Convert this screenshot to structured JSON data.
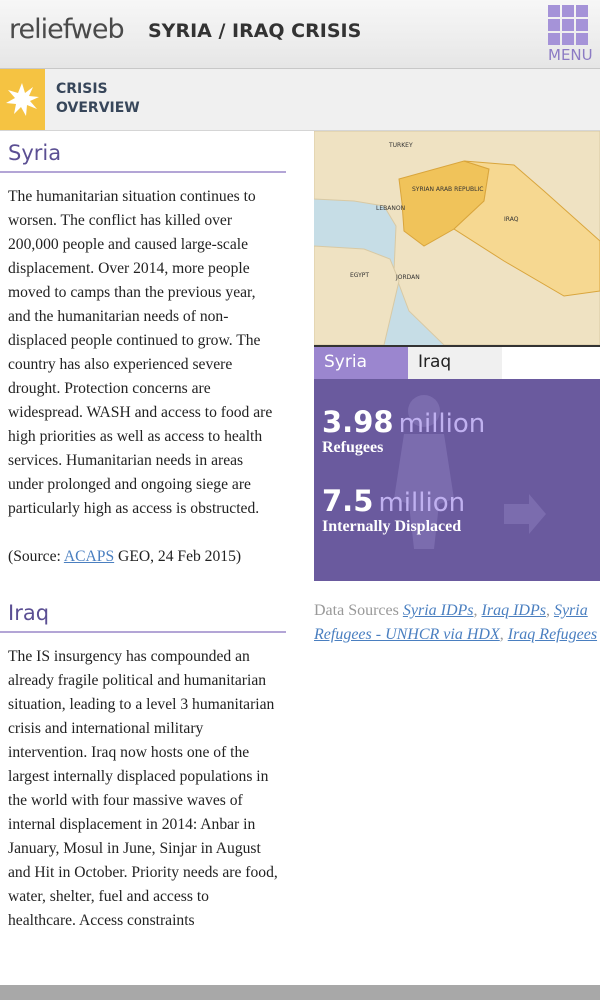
{
  "header": {
    "logo": "reliefweb",
    "title": "SYRIA / IRAQ CRISIS",
    "menu": "MENU"
  },
  "subheader": {
    "line1": "CRISIS",
    "line2": "OVERVIEW"
  },
  "sections": [
    {
      "heading": "Syria",
      "paragraph": "The humanitarian situation continues to worsen. The conflict has killed over 200,000 people and caused large-scale displacement. Over 2014, more people moved to camps than the previous year, and the humanitarian needs of non-displaced people continued to grow. The country has also experienced severe drought. Protection concerns are widespread. WASH and access to food are high priorities as well as access to health services. Humanitarian needs in areas under prolonged and ongoing siege are particularly high as access is obstructed.",
      "source": {
        "prefix": "(Source: ",
        "link": "ACAPS",
        "suffix": " GEO, 24 Feb 2015)"
      }
    },
    {
      "heading": "Iraq",
      "paragraph": "The IS insurgency has compounded an already fragile political and humanitarian situation, leading to a level 3 humanitarian crisis and international military intervention. Iraq now hosts one of the largest internally displaced populations in the world with four massive waves of internal displacement in 2014: Anbar in January, Mosul in June, Sinjar in August and Hit in October. Priority needs are food, water, shelter, fuel and access to healthcare. Access constraints"
    }
  ],
  "map": {
    "labels": [
      "TURKEY",
      "SYRIAN ARAB REPUBLIC",
      "LEBANON",
      "IRAQ",
      "EGYPT",
      "JORDAN"
    ]
  },
  "tabs": [
    "Syria",
    "Iraq"
  ],
  "stats": [
    {
      "value": "3.98",
      "unit": "million",
      "label": "Refugees"
    },
    {
      "value": "7.5",
      "unit": "million",
      "label": "Internally Displaced"
    }
  ],
  "data_sources": {
    "label": "Data Sources",
    "separator": ", ",
    "links": [
      "Syria IDPs",
      "Iraq IDPs",
      "Syria Refugees - UNHCR via HDX",
      "Iraq Refugees"
    ]
  }
}
